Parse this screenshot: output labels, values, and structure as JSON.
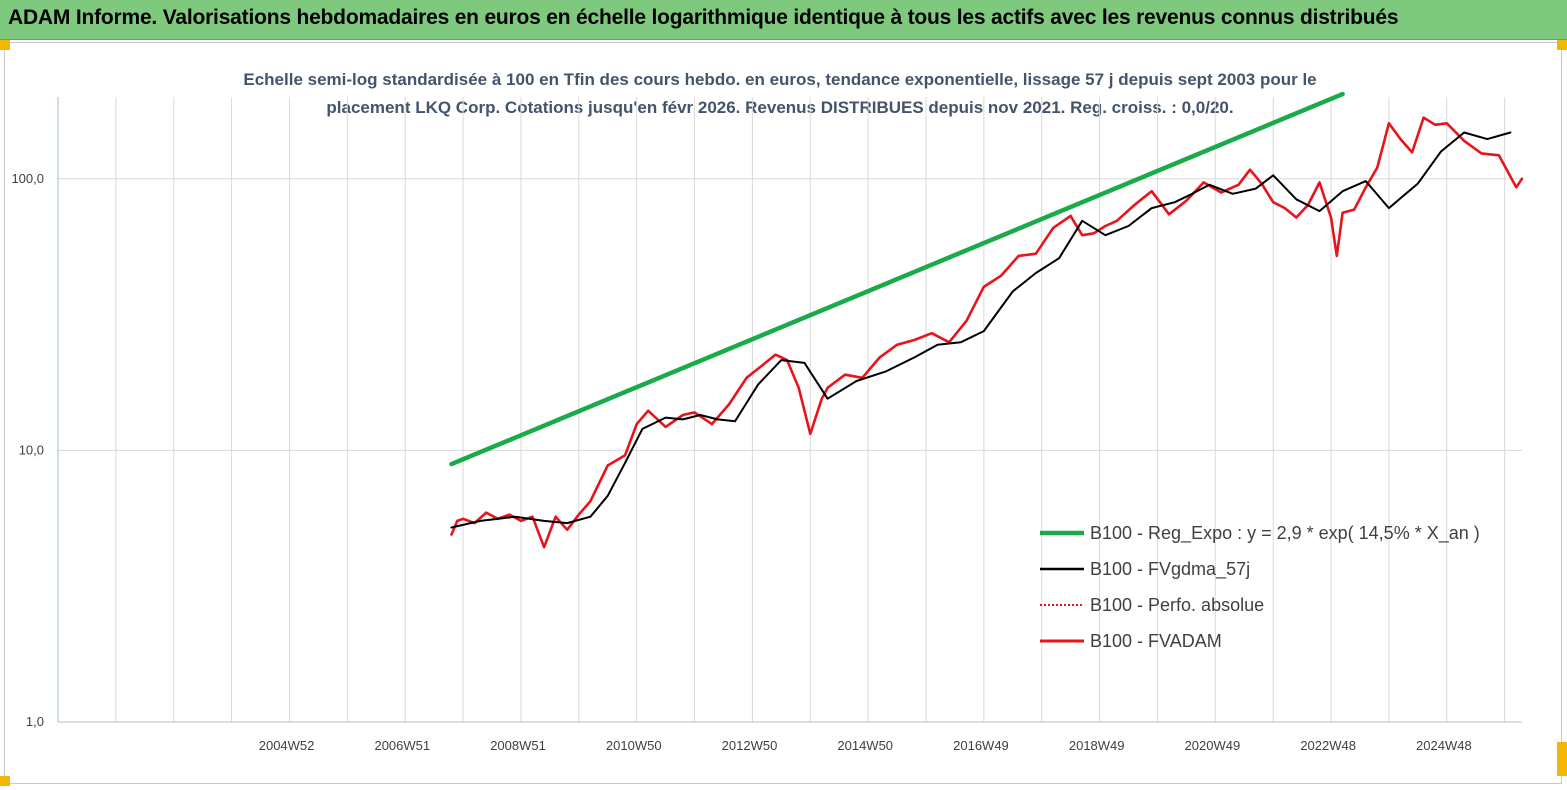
{
  "banner": {
    "title": "ADAM Informe. Valorisations hebdomadaires en euros en échelle logarithmique identique à tous les actifs avec les revenus connus distribués"
  },
  "colors": {
    "banner_bg": "#7fc97f",
    "regression": "#1aaa4a",
    "fvgdma": "#000000",
    "perfo": "#e8141c",
    "fvadam": "#e8141c",
    "grid": "#d9d9d9",
    "subtitle": "#44546a",
    "corner_marker": "#f2b705"
  },
  "chart_data": {
    "type": "line",
    "title_line1": "Echelle semi-log standardisée à 100 en Tfin des cours hebdo. en euros, tendance exponentielle, lissage 57 j depuis sept 2003  pour le",
    "title_line2": "placement LKQ Corp. Cotations jusqu'en févr 2026. Revenus DISTRIBUES depuis nov 2021.  Reg. croiss. : 0,0/20.",
    "y_scale": "log",
    "ylim": [
      1,
      200
    ],
    "y_ticks": [
      {
        "value": 1,
        "label": "1,0"
      },
      {
        "value": 10,
        "label": "10,0"
      },
      {
        "value": 100,
        "label": "100,0"
      }
    ],
    "xlim": [
      2001.0,
      2026.3
    ],
    "x_ticks": [
      {
        "x": 2004.95,
        "label": "2004W52"
      },
      {
        "x": 2006.95,
        "label": "2006W51"
      },
      {
        "x": 2008.95,
        "label": "2008W51"
      },
      {
        "x": 2010.95,
        "label": "2010W50"
      },
      {
        "x": 2012.95,
        "label": "2012W50"
      },
      {
        "x": 2014.95,
        "label": "2014W50"
      },
      {
        "x": 2016.95,
        "label": "2016W49"
      },
      {
        "x": 2018.95,
        "label": "2018W49"
      },
      {
        "x": 2020.95,
        "label": "2020W49"
      },
      {
        "x": 2022.95,
        "label": "2022W48"
      },
      {
        "x": 2024.95,
        "label": "2024W48"
      }
    ],
    "x_minor_gridlines": [
      2002.0,
      2003.0,
      2004.0,
      2005.0,
      2006.0,
      2007.0,
      2008.0,
      2009.0,
      2010.0,
      2011.0,
      2012.0,
      2013.0,
      2014.0,
      2015.0,
      2016.0,
      2017.0,
      2018.0,
      2019.0,
      2020.0,
      2021.0,
      2022.0,
      2023.0,
      2024.0,
      2025.0,
      2026.0
    ],
    "legend_position": "bottom-right",
    "series": [
      {
        "name": "B100 - Reg_Expo : y = 2,9 * exp( 14,5% *  X_an )",
        "key": "regression",
        "style": "thick",
        "x": [
          2007.8,
          2023.2
        ],
        "y": [
          8.9,
          205
        ]
      },
      {
        "name": "B100 - FVgdma_57j",
        "key": "fvgdma",
        "style": "thin",
        "x": [
          2007.8,
          2008.3,
          2008.9,
          2009.4,
          2009.8,
          2010.2,
          2010.5,
          2010.8,
          2011.1,
          2011.5,
          2011.8,
          2012.1,
          2012.4,
          2012.7,
          2013.1,
          2013.5,
          2013.9,
          2014.3,
          2014.8,
          2015.3,
          2015.8,
          2016.2,
          2016.6,
          2017.0,
          2017.5,
          2017.9,
          2018.3,
          2018.7,
          2019.1,
          2019.5,
          2019.9,
          2020.3,
          2020.6,
          2020.9,
          2021.3,
          2021.7,
          2022.0,
          2022.4,
          2022.8,
          2023.2,
          2023.6,
          2024.0,
          2024.5,
          2024.9,
          2025.3,
          2025.7,
          2026.1
        ],
        "y": [
          5.2,
          5.5,
          5.7,
          5.5,
          5.4,
          5.7,
          6.8,
          9.0,
          12.0,
          13.2,
          13.0,
          13.5,
          13.0,
          12.8,
          17.5,
          21.5,
          21.0,
          15.5,
          18.0,
          19.5,
          22.0,
          24.5,
          25.0,
          27.5,
          38.5,
          45.0,
          51.0,
          70.0,
          62.0,
          67.0,
          78.0,
          82.0,
          88.0,
          95.0,
          88.0,
          92.0,
          103.0,
          84.0,
          76.0,
          90.0,
          98.0,
          78.0,
          96.0,
          126.0,
          148.0,
          140.0,
          148.0
        ]
      },
      {
        "name": "B100 - Perfo. absolue",
        "key": "perfo",
        "style": "dotted",
        "x": [],
        "y": []
      },
      {
        "name": "B100 - FVADAM",
        "key": "fvadam",
        "style": "thick",
        "x": [
          2007.8,
          2007.9,
          2008.0,
          2008.2,
          2008.4,
          2008.6,
          2008.8,
          2009.0,
          2009.2,
          2009.4,
          2009.6,
          2009.8,
          2010.0,
          2010.2,
          2010.5,
          2010.8,
          2011.0,
          2011.2,
          2011.5,
          2011.8,
          2012.0,
          2012.3,
          2012.6,
          2012.9,
          2013.1,
          2013.4,
          2013.6,
          2013.8,
          2014.0,
          2014.2,
          2014.3,
          2014.6,
          2014.9,
          2015.2,
          2015.5,
          2015.8,
          2016.1,
          2016.4,
          2016.7,
          2017.0,
          2017.3,
          2017.6,
          2017.9,
          2018.2,
          2018.5,
          2018.7,
          2018.9,
          2019.1,
          2019.3,
          2019.6,
          2019.9,
          2020.2,
          2020.5,
          2020.8,
          2021.1,
          2021.4,
          2021.6,
          2021.8,
          2022.0,
          2022.2,
          2022.4,
          2022.6,
          2022.8,
          2023.0,
          2023.1,
          2023.2,
          2023.4,
          2023.6,
          2023.8,
          2024.0,
          2024.2,
          2024.4,
          2024.6,
          2024.8,
          2025.0,
          2025.3,
          2025.6,
          2025.9,
          2026.2,
          2026.3
        ],
        "y": [
          4.9,
          5.5,
          5.6,
          5.4,
          5.9,
          5.6,
          5.8,
          5.5,
          5.7,
          4.4,
          5.7,
          5.1,
          5.8,
          6.5,
          8.8,
          9.6,
          12.5,
          14.0,
          12.2,
          13.5,
          13.8,
          12.5,
          14.8,
          18.5,
          20.0,
          22.5,
          21.5,
          17.0,
          11.5,
          15.5,
          17.0,
          19.0,
          18.5,
          22.0,
          24.5,
          25.5,
          27.0,
          25.0,
          30.0,
          40.0,
          44.0,
          52.0,
          53.0,
          66.0,
          73.0,
          62.0,
          63.0,
          67.0,
          70.0,
          80.0,
          90.0,
          74.0,
          83.0,
          97.0,
          89.0,
          95.0,
          108.0,
          96.0,
          82.0,
          78.0,
          72.0,
          80.0,
          97.0,
          72.0,
          52.0,
          75.0,
          77.0,
          93.0,
          110.0,
          160.0,
          140.0,
          125.0,
          168.0,
          158.0,
          160.0,
          138.0,
          124.0,
          122.0,
          93.0,
          100.0
        ]
      }
    ]
  }
}
